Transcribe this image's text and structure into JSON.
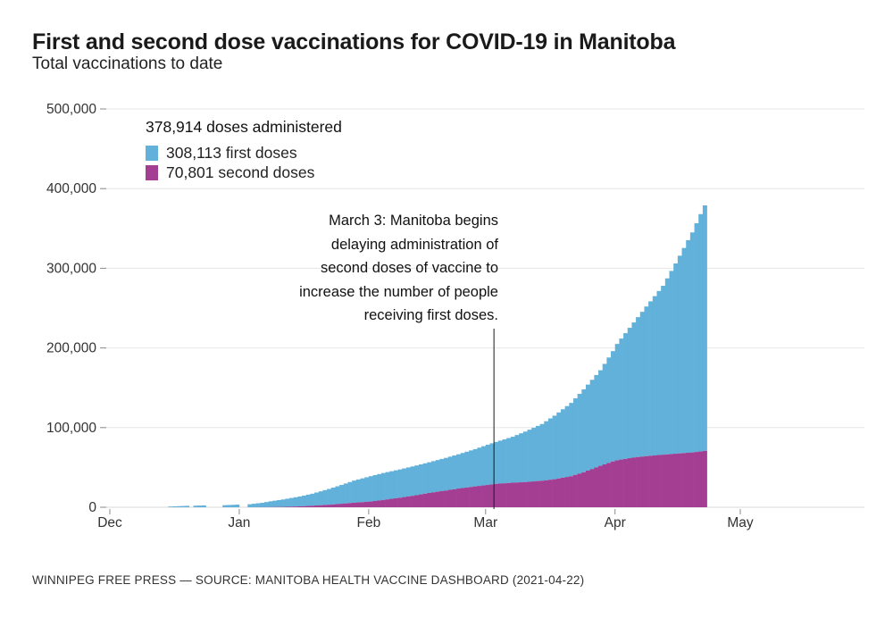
{
  "header": {
    "title": "First and second dose vaccinations for COVID-19 in Manitoba",
    "subtitle": "Total vaccinations to date"
  },
  "legend": {
    "heading": "378,914 doses administered",
    "items": [
      {
        "label": "308,113 first doses",
        "color": "#61b1da"
      },
      {
        "label": "70,801 second doses",
        "color": "#a43e92"
      }
    ]
  },
  "footer": {
    "text": "WINNIPEG FREE PRESS — SOURCE: MANITOBA HEALTH VACCINE DASHBOARD (2021-04-22)"
  },
  "colors": {
    "first_doses": "#61b1da",
    "second_doses": "#a43e92",
    "gridline": "#e6e6e6",
    "zero_axis": "#d9d9d9",
    "tick": "#8a8a8a",
    "axis_text": "#333333",
    "annotation_line": "#1a1a1a"
  },
  "chart_data": {
    "type": "area",
    "stacked": true,
    "title": "First and second dose vaccinations for COVID-19 in Manitoba",
    "subtitle": "Total vaccinations to date",
    "totals": {
      "all_doses": 378914,
      "first_doses": 308113,
      "second_doses": 70801
    },
    "as_of": "2021-04-22",
    "x_axis": {
      "start_date": "2020-12-01",
      "months": [
        {
          "label": "Dec",
          "day": 0
        },
        {
          "label": "Jan",
          "day": 31
        },
        {
          "label": "Feb",
          "day": 62
        },
        {
          "label": "Mar",
          "day": 90
        },
        {
          "label": "Apr",
          "day": 121
        },
        {
          "label": "May",
          "day": 151
        }
      ]
    },
    "y_axis": {
      "min": 0,
      "max": 500000,
      "grid": true,
      "ticks": [
        {
          "label": "0",
          "value": 0
        },
        {
          "label": "100,000",
          "value": 100000
        },
        {
          "label": "200,000",
          "value": 200000
        },
        {
          "label": "300,000",
          "value": 300000
        },
        {
          "label": "400,000",
          "value": 400000
        },
        {
          "label": "500,000",
          "value": 500000
        }
      ]
    },
    "series": [
      {
        "name": "first doses",
        "total": 308113,
        "color": "#61b1da",
        "stack_position": "top"
      },
      {
        "name": "second doses",
        "total": 70801,
        "color": "#a43e92",
        "stack_position": "bottom"
      }
    ],
    "cumulative_anchors": {
      "note": "Daily cumulative values read from chart; [day offset from 2020-12-01, doses]. Daily bars are linearly interpolated between anchors.",
      "total_doses": [
        [
          14,
          900
        ],
        [
          18,
          1800
        ],
        [
          20,
          2000
        ],
        [
          22,
          2300
        ],
        [
          27,
          2600
        ],
        [
          30,
          3300
        ],
        [
          33,
          3800
        ],
        [
          36,
          5600
        ],
        [
          38,
          7500
        ],
        [
          41,
          9800
        ],
        [
          45,
          13500
        ],
        [
          48,
          17000
        ],
        [
          52,
          23000
        ],
        [
          55,
          28000
        ],
        [
          58,
          33500
        ],
        [
          62,
          39000
        ],
        [
          65,
          43000
        ],
        [
          69,
          47500
        ],
        [
          73,
          52500
        ],
        [
          76,
          56500
        ],
        [
          80,
          62000
        ],
        [
          83,
          66500
        ],
        [
          87,
          73000
        ],
        [
          90,
          78500
        ],
        [
          92,
          82000
        ],
        [
          96,
          88500
        ],
        [
          99,
          95000
        ],
        [
          103,
          104500
        ],
        [
          106,
          115000
        ],
        [
          110,
          131000
        ],
        [
          113,
          148000
        ],
        [
          117,
          172000
        ],
        [
          120,
          196000
        ],
        [
          121,
          205000
        ],
        [
          125,
          232000
        ],
        [
          128,
          252000
        ],
        [
          132,
          278000
        ],
        [
          135,
          306000
        ],
        [
          139,
          345000
        ],
        [
          141,
          368000
        ],
        [
          142,
          378914
        ]
      ],
      "second_doses": [
        [
          14,
          0
        ],
        [
          30,
          0
        ],
        [
          33,
          0
        ],
        [
          36,
          100
        ],
        [
          38,
          200
        ],
        [
          41,
          400
        ],
        [
          45,
          1100
        ],
        [
          48,
          1900
        ],
        [
          52,
          3200
        ],
        [
          55,
          4400
        ],
        [
          58,
          5700
        ],
        [
          62,
          7200
        ],
        [
          65,
          9200
        ],
        [
          69,
          12000
        ],
        [
          73,
          15200
        ],
        [
          76,
          18000
        ],
        [
          80,
          21000
        ],
        [
          83,
          23500
        ],
        [
          87,
          26200
        ],
        [
          90,
          28000
        ],
        [
          92,
          29400
        ],
        [
          96,
          30800
        ],
        [
          99,
          31600
        ],
        [
          103,
          33300
        ],
        [
          106,
          35200
        ],
        [
          110,
          39000
        ],
        [
          113,
          44000
        ],
        [
          117,
          52000
        ],
        [
          120,
          57500
        ],
        [
          121,
          59000
        ],
        [
          125,
          62500
        ],
        [
          128,
          64200
        ],
        [
          132,
          66000
        ],
        [
          135,
          67200
        ],
        [
          139,
          68800
        ],
        [
          141,
          70000
        ],
        [
          142,
          70801
        ]
      ]
    },
    "data_range_days": {
      "first": 14,
      "last": 142
    },
    "missing_days": [
      19,
      23,
      24,
      25,
      26,
      31,
      32
    ],
    "annotation": {
      "date_day": 92,
      "lines": [
        "March 3: Manitoba begins",
        "delaying administration of",
        "second doses of vaccine to",
        "increase the number of people",
        "receiving first doses."
      ]
    }
  }
}
